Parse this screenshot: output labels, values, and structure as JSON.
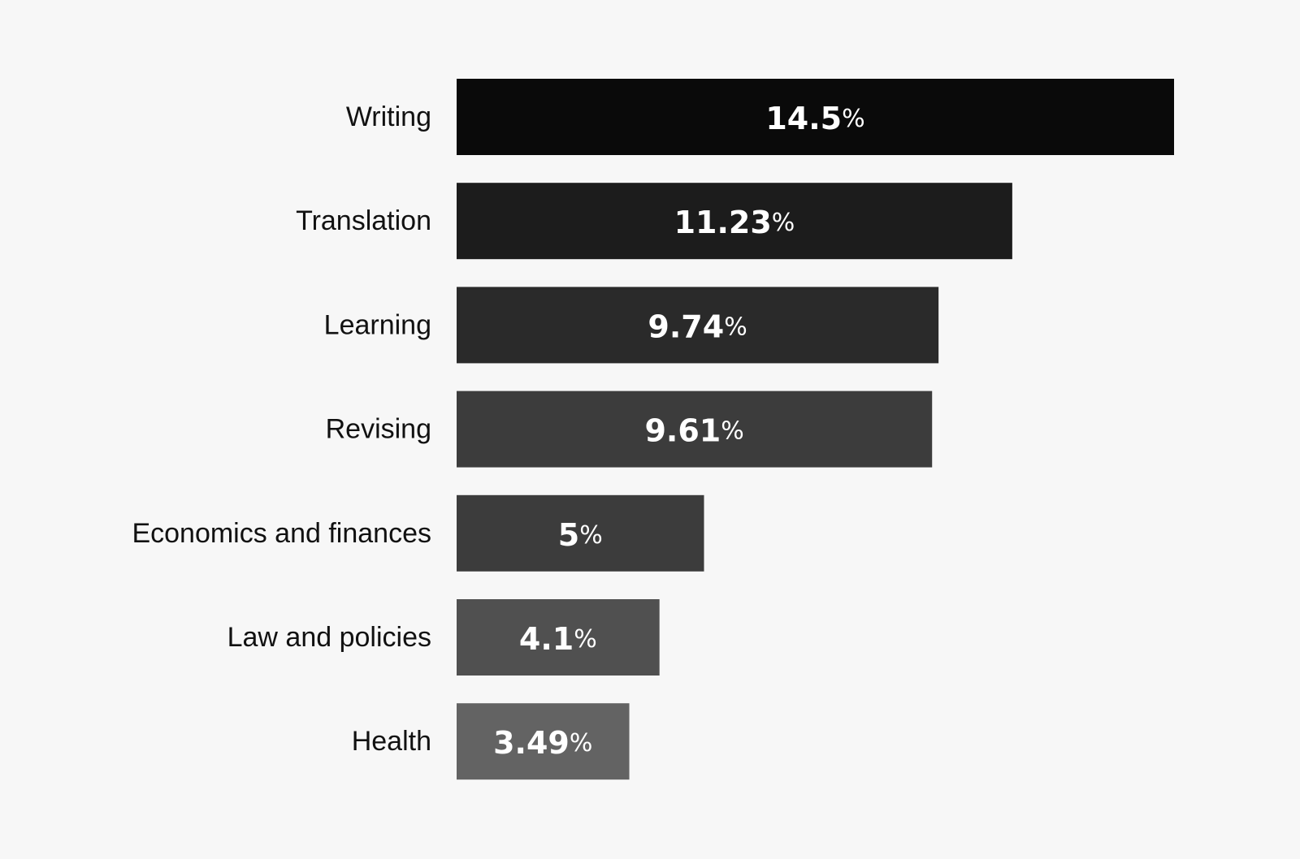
{
  "chart_data": {
    "type": "bar",
    "orientation": "horizontal",
    "categories": [
      "Writing",
      "Translation",
      "Learning",
      "Revising",
      "Economics and finances",
      "Law and policies",
      "Health"
    ],
    "values": [
      14.5,
      11.23,
      9.74,
      9.61,
      5,
      4.1,
      3.49
    ],
    "value_labels": [
      "14.5",
      "11.23",
      "9.74",
      "9.61",
      "5",
      "4.1",
      "3.49"
    ],
    "value_suffix": "%",
    "bar_colors": [
      "#0a0a0a",
      "#1c1c1c",
      "#2a2a2a",
      "#3c3c3c",
      "#3c3c3c",
      "#505050",
      "#636363"
    ],
    "value_label_color": "#ffffff",
    "category_label_color": "#111111",
    "background": "#f7f7f7",
    "title": "",
    "xlabel": "",
    "ylabel": "",
    "grid": false,
    "legend": "none"
  }
}
